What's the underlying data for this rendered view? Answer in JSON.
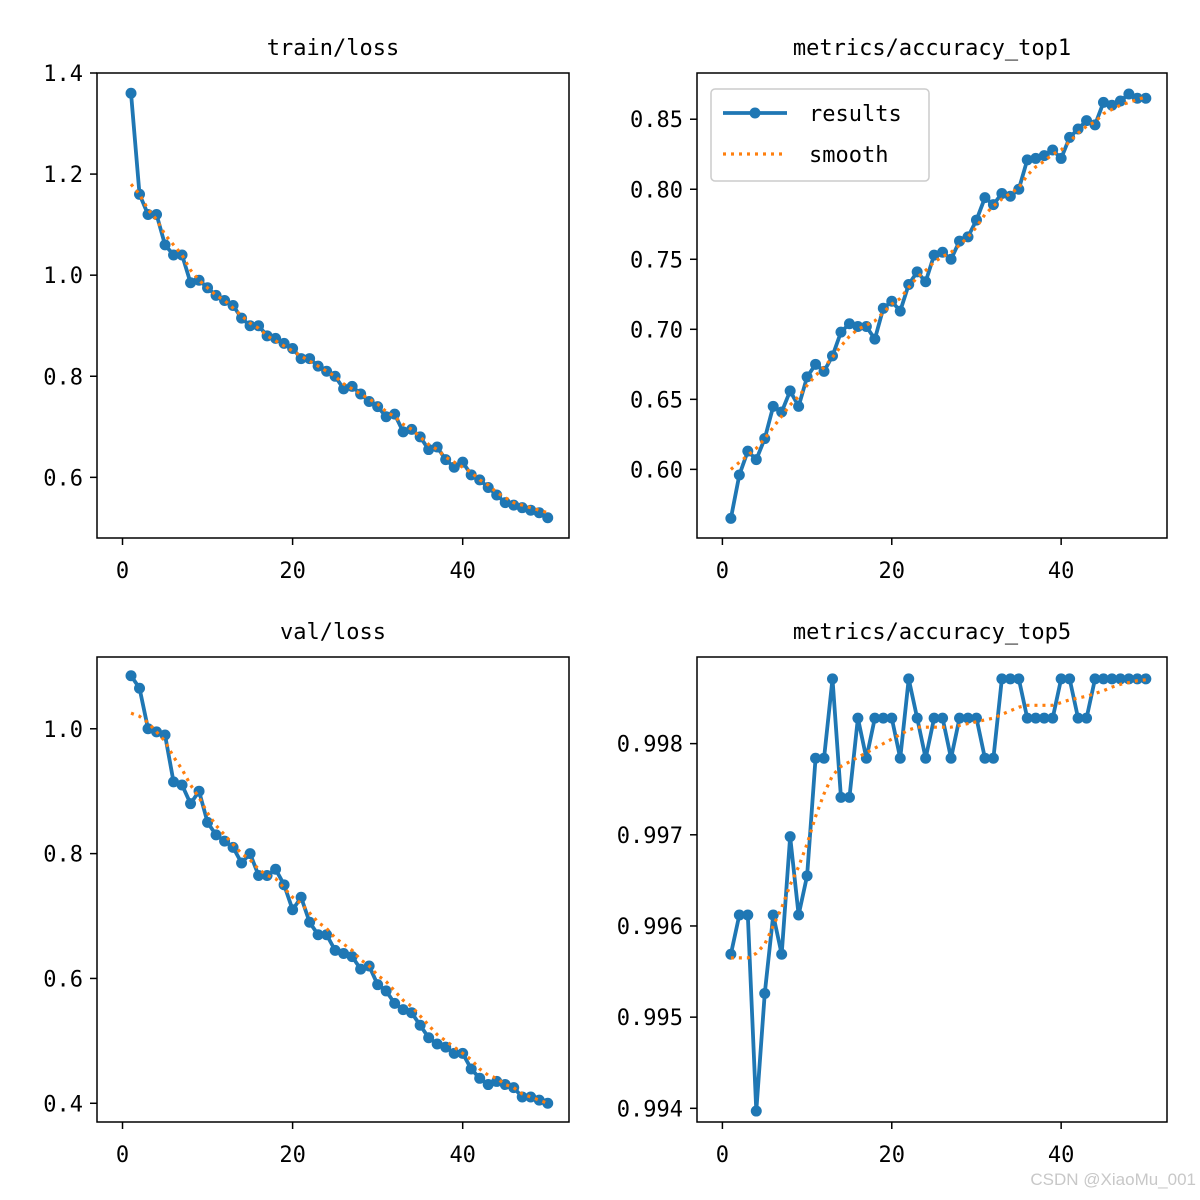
{
  "watermark": "CSDN @XiaoMu_001",
  "colors": {
    "results": "#1f77b4",
    "smooth": "#ff7f0e"
  },
  "chart_data": [
    {
      "type": "line",
      "title": "train/loss",
      "xlim": [
        -3,
        52.5
      ],
      "ylim": [
        0.48,
        1.4
      ],
      "xticks": [
        0,
        20,
        40
      ],
      "yticks": [
        0.6,
        0.8,
        1.0,
        1.2,
        1.4
      ],
      "ytick_labels": [
        "0.6",
        "0.8",
        "1.0",
        "1.2",
        "1.4"
      ],
      "legend": false,
      "x": [
        1,
        2,
        3,
        4,
        5,
        6,
        7,
        8,
        9,
        10,
        11,
        12,
        13,
        14,
        15,
        16,
        17,
        18,
        19,
        20,
        21,
        22,
        23,
        24,
        25,
        26,
        27,
        28,
        29,
        30,
        31,
        32,
        33,
        34,
        35,
        36,
        37,
        38,
        39,
        40,
        41,
        42,
        43,
        44,
        45,
        46,
        47,
        48,
        49,
        50
      ],
      "series": [
        {
          "name": "results",
          "style": "line-marker",
          "values": [
            1.36,
            1.16,
            1.12,
            1.12,
            1.06,
            1.04,
            1.04,
            0.985,
            0.99,
            0.975,
            0.96,
            0.95,
            0.94,
            0.915,
            0.9,
            0.9,
            0.88,
            0.875,
            0.865,
            0.855,
            0.835,
            0.835,
            0.82,
            0.81,
            0.8,
            0.775,
            0.78,
            0.765,
            0.75,
            0.74,
            0.72,
            0.725,
            0.69,
            0.695,
            0.68,
            0.655,
            0.66,
            0.635,
            0.62,
            0.63,
            0.605,
            0.595,
            0.58,
            0.565,
            0.55,
            0.545,
            0.54,
            0.535,
            0.53,
            0.52
          ]
        },
        {
          "name": "smooth",
          "style": "dotted",
          "values": [
            1.18,
            1.16,
            1.13,
            1.11,
            1.08,
            1.06,
            1.04,
            1.01,
            0.99,
            0.975,
            0.96,
            0.95,
            0.935,
            0.92,
            0.905,
            0.895,
            0.88,
            0.87,
            0.86,
            0.85,
            0.84,
            0.83,
            0.82,
            0.81,
            0.8,
            0.785,
            0.775,
            0.765,
            0.755,
            0.745,
            0.73,
            0.72,
            0.705,
            0.695,
            0.68,
            0.665,
            0.655,
            0.64,
            0.63,
            0.62,
            0.61,
            0.595,
            0.585,
            0.57,
            0.56,
            0.55,
            0.545,
            0.54,
            0.535,
            0.53
          ]
        }
      ]
    },
    {
      "type": "line",
      "title": "metrics/accuracy_top1",
      "xlim": [
        -3,
        52.5
      ],
      "ylim": [
        0.551,
        0.883
      ],
      "xticks": [
        0,
        20,
        40
      ],
      "yticks": [
        0.6,
        0.65,
        0.7,
        0.75,
        0.8,
        0.85
      ],
      "ytick_labels": [
        "0.60",
        "0.65",
        "0.70",
        "0.75",
        "0.80",
        "0.85"
      ],
      "legend": true,
      "legend_loc": "upper left",
      "x": [
        1,
        2,
        3,
        4,
        5,
        6,
        7,
        8,
        9,
        10,
        11,
        12,
        13,
        14,
        15,
        16,
        17,
        18,
        19,
        20,
        21,
        22,
        23,
        24,
        25,
        26,
        27,
        28,
        29,
        30,
        31,
        32,
        33,
        34,
        35,
        36,
        37,
        38,
        39,
        40,
        41,
        42,
        43,
        44,
        45,
        46,
        47,
        48,
        49,
        50
      ],
      "series": [
        {
          "name": "results",
          "style": "line-marker",
          "values": [
            0.565,
            0.596,
            0.613,
            0.607,
            0.622,
            0.645,
            0.641,
            0.656,
            0.645,
            0.666,
            0.675,
            0.67,
            0.681,
            0.698,
            0.704,
            0.702,
            0.702,
            0.693,
            0.715,
            0.72,
            0.713,
            0.732,
            0.741,
            0.734,
            0.753,
            0.755,
            0.75,
            0.763,
            0.766,
            0.778,
            0.794,
            0.789,
            0.797,
            0.795,
            0.8,
            0.821,
            0.822,
            0.824,
            0.828,
            0.822,
            0.837,
            0.843,
            0.849,
            0.846,
            0.862,
            0.86,
            0.863,
            0.868,
            0.865,
            0.865
          ]
        },
        {
          "name": "smooth",
          "style": "dotted",
          "values": [
            0.6,
            0.605,
            0.61,
            0.615,
            0.622,
            0.63,
            0.638,
            0.646,
            0.652,
            0.66,
            0.667,
            0.673,
            0.68,
            0.688,
            0.695,
            0.7,
            0.703,
            0.706,
            0.712,
            0.718,
            0.722,
            0.73,
            0.737,
            0.742,
            0.748,
            0.752,
            0.755,
            0.76,
            0.766,
            0.773,
            0.782,
            0.788,
            0.793,
            0.797,
            0.801,
            0.81,
            0.816,
            0.82,
            0.825,
            0.828,
            0.834,
            0.84,
            0.845,
            0.848,
            0.854,
            0.857,
            0.86,
            0.862,
            0.864,
            0.866
          ]
        }
      ]
    },
    {
      "type": "line",
      "title": "val/loss",
      "xlim": [
        -3,
        52.5
      ],
      "ylim": [
        0.37,
        1.115
      ],
      "xticks": [
        0,
        20,
        40
      ],
      "yticks": [
        0.4,
        0.6,
        0.8,
        1.0
      ],
      "ytick_labels": [
        "0.4",
        "0.6",
        "0.8",
        "1.0"
      ],
      "legend": false,
      "x": [
        1,
        2,
        3,
        4,
        5,
        6,
        7,
        8,
        9,
        10,
        11,
        12,
        13,
        14,
        15,
        16,
        17,
        18,
        19,
        20,
        21,
        22,
        23,
        24,
        25,
        26,
        27,
        28,
        29,
        30,
        31,
        32,
        33,
        34,
        35,
        36,
        37,
        38,
        39,
        40,
        41,
        42,
        43,
        44,
        45,
        46,
        47,
        48,
        49,
        50
      ],
      "series": [
        {
          "name": "results",
          "style": "line-marker",
          "values": [
            1.085,
            1.065,
            1.0,
            0.995,
            0.99,
            0.915,
            0.91,
            0.88,
            0.9,
            0.85,
            0.83,
            0.82,
            0.81,
            0.785,
            0.8,
            0.765,
            0.765,
            0.775,
            0.75,
            0.71,
            0.73,
            0.69,
            0.67,
            0.67,
            0.645,
            0.64,
            0.635,
            0.615,
            0.62,
            0.59,
            0.58,
            0.56,
            0.55,
            0.545,
            0.525,
            0.505,
            0.495,
            0.49,
            0.48,
            0.48,
            0.455,
            0.44,
            0.43,
            0.435,
            0.43,
            0.425,
            0.41,
            0.41,
            0.405,
            0.4
          ]
        },
        {
          "name": "smooth",
          "style": "dotted",
          "values": [
            1.025,
            1.02,
            1.01,
            0.995,
            0.98,
            0.955,
            0.935,
            0.91,
            0.89,
            0.865,
            0.845,
            0.83,
            0.815,
            0.8,
            0.79,
            0.775,
            0.765,
            0.76,
            0.745,
            0.73,
            0.72,
            0.705,
            0.69,
            0.68,
            0.665,
            0.655,
            0.645,
            0.63,
            0.62,
            0.605,
            0.595,
            0.58,
            0.565,
            0.555,
            0.54,
            0.525,
            0.51,
            0.5,
            0.49,
            0.48,
            0.47,
            0.455,
            0.445,
            0.44,
            0.43,
            0.425,
            0.415,
            0.41,
            0.405,
            0.4
          ]
        }
      ]
    },
    {
      "type": "line",
      "title": "metrics/accuracy_top5",
      "xlim": [
        -3,
        52.5
      ],
      "ylim": [
        0.99385,
        0.99895
      ],
      "xticks": [
        0,
        20,
        40
      ],
      "yticks": [
        0.994,
        0.995,
        0.996,
        0.997,
        0.998
      ],
      "ytick_labels": [
        "0.994",
        "0.995",
        "0.996",
        "0.997",
        "0.998"
      ],
      "legend": false,
      "x": [
        1,
        2,
        3,
        4,
        5,
        6,
        7,
        8,
        9,
        10,
        11,
        12,
        13,
        14,
        15,
        16,
        17,
        18,
        19,
        20,
        21,
        22,
        23,
        24,
        25,
        26,
        27,
        28,
        29,
        30,
        31,
        32,
        33,
        34,
        35,
        36,
        37,
        38,
        39,
        40,
        41,
        42,
        43,
        44,
        45,
        46,
        47,
        48,
        49,
        50
      ],
      "series": [
        {
          "name": "results",
          "style": "line-marker",
          "values": [
            0.99569,
            0.99612,
            0.99612,
            0.99397,
            0.99526,
            0.99612,
            0.99569,
            0.99698,
            0.99612,
            0.99655,
            0.99784,
            0.99784,
            0.99871,
            0.99741,
            0.99741,
            0.99828,
            0.99784,
            0.99828,
            0.99828,
            0.99828,
            0.99784,
            0.99871,
            0.99828,
            0.99784,
            0.99828,
            0.99828,
            0.99784,
            0.99828,
            0.99828,
            0.99828,
            0.99784,
            0.99784,
            0.99871,
            0.99871,
            0.99871,
            0.99828,
            0.99828,
            0.99828,
            0.99828,
            0.99871,
            0.99871,
            0.99828,
            0.99828,
            0.99871,
            0.99871,
            0.99871,
            0.99871,
            0.99871,
            0.99871,
            0.99871
          ]
        },
        {
          "name": "smooth",
          "style": "dotted",
          "values": [
            0.99565,
            0.99565,
            0.99565,
            0.9957,
            0.9958,
            0.996,
            0.9962,
            0.99645,
            0.99665,
            0.9969,
            0.9972,
            0.99745,
            0.99765,
            0.99775,
            0.9978,
            0.99785,
            0.9979,
            0.99795,
            0.998,
            0.99805,
            0.9981,
            0.99815,
            0.99818,
            0.99818,
            0.99818,
            0.99818,
            0.99818,
            0.9982,
            0.99822,
            0.99824,
            0.99826,
            0.99828,
            0.99832,
            0.99836,
            0.9984,
            0.99842,
            0.99842,
            0.99842,
            0.99842,
            0.99845,
            0.99848,
            0.9985,
            0.99852,
            0.99855,
            0.99858,
            0.99862,
            0.99865,
            0.99867,
            0.99869,
            0.9987
          ]
        }
      ]
    }
  ]
}
